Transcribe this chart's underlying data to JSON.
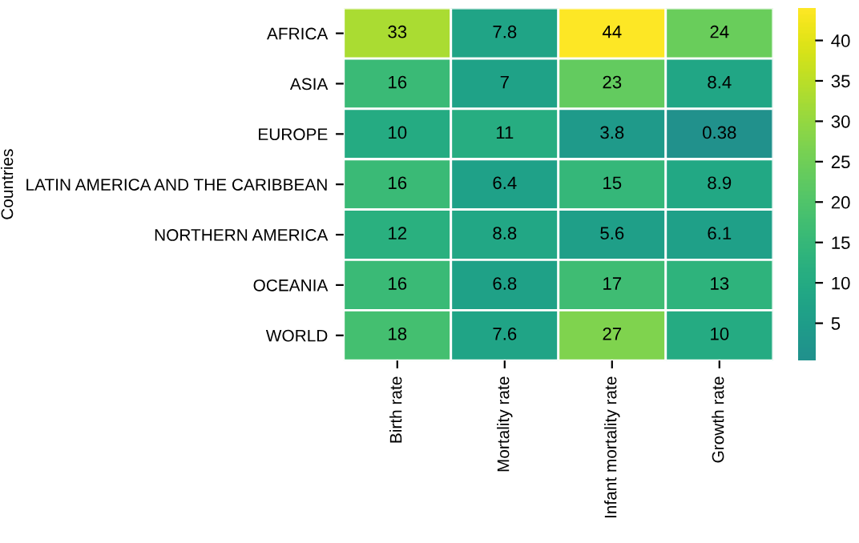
{
  "chart_data": {
    "type": "heatmap",
    "ylabel": "Countries",
    "categories": [
      "Birth rate",
      "Mortality rate",
      "Infant mortality rate",
      "Growth rate"
    ],
    "y_categories": [
      "AFRICA",
      "ASIA",
      "EUROPE",
      "LATIN AMERICA AND THE CARIBBEAN",
      "NORTHERN AMERICA",
      "OCEANIA",
      "WORLD"
    ],
    "cells": [
      [
        33,
        7.8,
        44,
        24
      ],
      [
        16,
        7,
        23,
        8.4
      ],
      [
        10,
        11,
        3.8,
        0.38
      ],
      [
        16,
        6.4,
        15,
        8.9
      ],
      [
        12,
        8.8,
        5.6,
        6.1
      ],
      [
        16,
        6.8,
        17,
        13
      ],
      [
        18,
        7.6,
        27,
        10
      ]
    ],
    "clim": [
      0.38,
      44
    ],
    "cticks": [
      5,
      10,
      15,
      20,
      25,
      30,
      35,
      40
    ],
    "data_labels": true
  }
}
